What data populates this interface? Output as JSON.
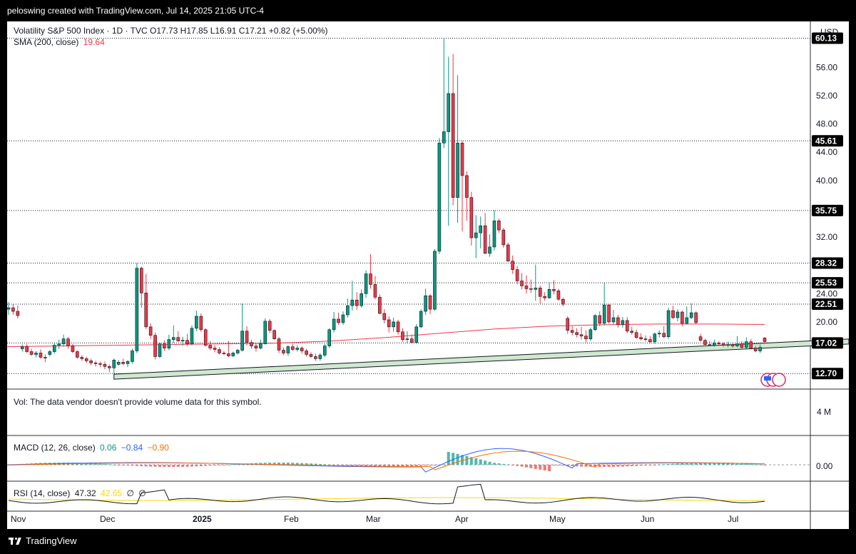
{
  "header": {
    "text": "peloswing created with TradingView.com, Jul 14, 2025 21:05 UTC-4"
  },
  "footer": {
    "brand": "TradingView"
  },
  "legend": {
    "symbol_line": "Volatility S&P 500 Index · 1D · TVC  O17.73  H17.85  L16.91  C17.21  +0.82 (+5.00%)",
    "sma_label": "SMA (200, close)",
    "sma_value": "19.64",
    "currency": "USD"
  },
  "volume": {
    "label": "Vol: The data vendor doesn't provide volume data for this symbol.",
    "axis_label": "4 M"
  },
  "macd": {
    "label": "MACD (12, 26, close)",
    "v1": "0.06",
    "v2": "−0.84",
    "v3": "−0.90",
    "zero_label": "0.00"
  },
  "rsi": {
    "label": "RSI (14, close)",
    "v1": "47.32",
    "v2": "42.65",
    "v3": "∅",
    "v4": "∅"
  },
  "colors": {
    "up": "#089981",
    "down": "#f23645",
    "sma": "#f23645",
    "macd": "#2962ff",
    "signal": "#ff6d00",
    "rsi_ma": "#f5d90a",
    "channel": "#cfe8cf"
  },
  "chart_data": {
    "type": "candlestick",
    "title": "Volatility S&P 500 Index · 1D · TVC",
    "ylim": [
      10.5,
      62.5
    ],
    "y_ticks": [
      "56.00",
      "52.00",
      "48.00",
      "44.00",
      "40.00",
      "32.00",
      "24.00",
      "20.00"
    ],
    "x_ticks": [
      "Nov",
      "Dec",
      "2025",
      "Feb",
      "Mar",
      "Apr",
      "May",
      "Jun",
      "Jul"
    ],
    "price_levels": [
      "60.13",
      "45.61",
      "35.75",
      "28.32",
      "25.53",
      "22.51",
      "17.02",
      "12.70"
    ],
    "support_line": {
      "start": [
        "Dec 18",
        11.9
      ],
      "end": [
        "Jul 14",
        16.3
      ]
    },
    "candles": [
      {
        "o": 21.8,
        "h": 22.8,
        "l": 21.0,
        "c": 22.0
      },
      {
        "o": 22.0,
        "h": 22.5,
        "l": 21.0,
        "c": 21.5
      },
      {
        "o": 21.5,
        "h": 22.3,
        "l": 20.5,
        "c": 20.9
      },
      {
        "o": 16.2,
        "h": 16.8,
        "l": 15.8,
        "c": 16.5
      },
      {
        "o": 16.5,
        "h": 16.9,
        "l": 15.6,
        "c": 15.8
      },
      {
        "o": 15.8,
        "h": 16.2,
        "l": 15.2,
        "c": 15.4
      },
      {
        "o": 15.4,
        "h": 15.9,
        "l": 15.0,
        "c": 15.6
      },
      {
        "o": 15.6,
        "h": 16.1,
        "l": 14.8,
        "c": 15.0
      },
      {
        "o": 15.0,
        "h": 15.4,
        "l": 14.3,
        "c": 14.9
      },
      {
        "o": 15.4,
        "h": 16.0,
        "l": 15.1,
        "c": 15.8
      },
      {
        "o": 15.8,
        "h": 17.0,
        "l": 15.5,
        "c": 16.7
      },
      {
        "o": 16.7,
        "h": 17.5,
        "l": 16.2,
        "c": 16.9
      },
      {
        "o": 16.9,
        "h": 18.2,
        "l": 16.5,
        "c": 17.6
      },
      {
        "o": 17.6,
        "h": 17.9,
        "l": 16.2,
        "c": 16.6
      },
      {
        "o": 16.6,
        "h": 16.9,
        "l": 15.6,
        "c": 15.8
      },
      {
        "o": 15.8,
        "h": 16.0,
        "l": 14.8,
        "c": 15.0
      },
      {
        "o": 15.0,
        "h": 15.3,
        "l": 14.5,
        "c": 14.8
      },
      {
        "o": 14.8,
        "h": 15.1,
        "l": 14.2,
        "c": 14.5
      },
      {
        "o": 14.5,
        "h": 14.8,
        "l": 13.9,
        "c": 14.2
      },
      {
        "o": 14.2,
        "h": 14.5,
        "l": 13.7,
        "c": 14.1
      },
      {
        "o": 14.1,
        "h": 14.4,
        "l": 13.6,
        "c": 14.0
      },
      {
        "o": 14.0,
        "h": 14.4,
        "l": 13.3,
        "c": 13.7
      },
      {
        "o": 13.7,
        "h": 14.0,
        "l": 12.9,
        "c": 13.5
      },
      {
        "o": 13.5,
        "h": 14.8,
        "l": 12.7,
        "c": 14.6
      },
      {
        "o": 14.0,
        "h": 14.6,
        "l": 13.8,
        "c": 14.3
      },
      {
        "o": 14.3,
        "h": 14.8,
        "l": 13.9,
        "c": 14.1
      },
      {
        "o": 14.1,
        "h": 14.6,
        "l": 13.6,
        "c": 14.4
      },
      {
        "o": 14.4,
        "h": 16.2,
        "l": 14.1,
        "c": 15.9
      },
      {
        "o": 15.9,
        "h": 28.3,
        "l": 15.6,
        "c": 27.6
      },
      {
        "o": 27.6,
        "h": 27.8,
        "l": 22.0,
        "c": 24.1
      },
      {
        "o": 24.1,
        "h": 26.8,
        "l": 19.0,
        "c": 19.3
      },
      {
        "o": 19.3,
        "h": 19.8,
        "l": 17.6,
        "c": 18.1
      },
      {
        "o": 18.1,
        "h": 18.5,
        "l": 14.7,
        "c": 15.1
      },
      {
        "o": 15.1,
        "h": 17.1,
        "l": 14.9,
        "c": 16.9
      },
      {
        "o": 16.9,
        "h": 17.4,
        "l": 15.9,
        "c": 16.3
      },
      {
        "o": 16.3,
        "h": 18.2,
        "l": 16.0,
        "c": 17.5
      },
      {
        "o": 17.5,
        "h": 19.5,
        "l": 17.0,
        "c": 17.8
      },
      {
        "o": 17.8,
        "h": 18.7,
        "l": 17.2,
        "c": 17.3
      },
      {
        "o": 17.3,
        "h": 17.9,
        "l": 16.6,
        "c": 17.4
      },
      {
        "o": 17.4,
        "h": 18.3,
        "l": 16.6,
        "c": 16.9
      },
      {
        "o": 16.9,
        "h": 19.5,
        "l": 16.7,
        "c": 19.1
      },
      {
        "o": 19.1,
        "h": 21.6,
        "l": 18.7,
        "c": 20.8
      },
      {
        "o": 20.8,
        "h": 21.2,
        "l": 18.6,
        "c": 18.9
      },
      {
        "o": 18.9,
        "h": 19.1,
        "l": 16.5,
        "c": 16.7
      },
      {
        "o": 16.7,
        "h": 17.3,
        "l": 16.0,
        "c": 16.3
      },
      {
        "o": 16.3,
        "h": 16.7,
        "l": 15.7,
        "c": 16.1
      },
      {
        "o": 16.1,
        "h": 16.4,
        "l": 15.4,
        "c": 15.6
      },
      {
        "o": 15.6,
        "h": 15.9,
        "l": 15.3,
        "c": 15.5
      },
      {
        "o": 15.5,
        "h": 17.3,
        "l": 15.0,
        "c": 15.2
      },
      {
        "o": 15.2,
        "h": 15.8,
        "l": 15.0,
        "c": 15.6
      },
      {
        "o": 15.6,
        "h": 16.2,
        "l": 15.4,
        "c": 16.0
      },
      {
        "o": 16.0,
        "h": 22.6,
        "l": 15.8,
        "c": 18.7
      },
      {
        "o": 18.7,
        "h": 19.4,
        "l": 16.7,
        "c": 17.1
      },
      {
        "o": 17.1,
        "h": 17.5,
        "l": 16.2,
        "c": 16.6
      },
      {
        "o": 16.6,
        "h": 16.9,
        "l": 15.8,
        "c": 16.3
      },
      {
        "o": 16.3,
        "h": 17.5,
        "l": 16.1,
        "c": 16.9
      },
      {
        "o": 16.9,
        "h": 20.5,
        "l": 16.8,
        "c": 20.1
      },
      {
        "o": 20.1,
        "h": 20.4,
        "l": 18.4,
        "c": 18.8
      },
      {
        "o": 18.8,
        "h": 18.9,
        "l": 17.5,
        "c": 17.6
      },
      {
        "o": 17.6,
        "h": 17.9,
        "l": 15.6,
        "c": 16.0
      },
      {
        "o": 16.0,
        "h": 16.4,
        "l": 15.3,
        "c": 15.6
      },
      {
        "o": 15.6,
        "h": 16.7,
        "l": 15.2,
        "c": 16.5
      },
      {
        "o": 16.5,
        "h": 16.9,
        "l": 15.9,
        "c": 16.1
      },
      {
        "o": 16.1,
        "h": 16.7,
        "l": 15.8,
        "c": 16.3
      },
      {
        "o": 16.3,
        "h": 16.6,
        "l": 15.5,
        "c": 15.9
      },
      {
        "o": 15.9,
        "h": 16.2,
        "l": 15.1,
        "c": 15.4
      },
      {
        "o": 15.4,
        "h": 15.7,
        "l": 14.9,
        "c": 15.1
      },
      {
        "o": 15.1,
        "h": 15.5,
        "l": 14.5,
        "c": 14.8
      },
      {
        "o": 14.8,
        "h": 15.6,
        "l": 14.5,
        "c": 15.3
      },
      {
        "o": 15.3,
        "h": 16.9,
        "l": 15.0,
        "c": 16.6
      },
      {
        "o": 16.6,
        "h": 19.1,
        "l": 16.3,
        "c": 18.9
      },
      {
        "o": 18.9,
        "h": 21.4,
        "l": 18.5,
        "c": 20.4
      },
      {
        "o": 20.4,
        "h": 21.3,
        "l": 19.6,
        "c": 19.9
      },
      {
        "o": 19.9,
        "h": 21.5,
        "l": 19.6,
        "c": 21.0
      },
      {
        "o": 21.0,
        "h": 23.3,
        "l": 20.6,
        "c": 22.3
      },
      {
        "o": 22.3,
        "h": 25.8,
        "l": 21.6,
        "c": 23.1
      },
      {
        "o": 23.1,
        "h": 24.2,
        "l": 21.7,
        "c": 22.3
      },
      {
        "o": 22.3,
        "h": 24.6,
        "l": 22.0,
        "c": 24.0
      },
      {
        "o": 24.0,
        "h": 27.3,
        "l": 23.4,
        "c": 26.8
      },
      {
        "o": 26.8,
        "h": 29.6,
        "l": 24.7,
        "c": 25.3
      },
      {
        "o": 25.3,
        "h": 26.5,
        "l": 23.2,
        "c": 23.5
      },
      {
        "o": 23.5,
        "h": 23.9,
        "l": 21.1,
        "c": 21.2
      },
      {
        "o": 21.2,
        "h": 21.8,
        "l": 19.8,
        "c": 20.3
      },
      {
        "o": 20.3,
        "h": 20.8,
        "l": 18.5,
        "c": 19.3
      },
      {
        "o": 19.3,
        "h": 20.6,
        "l": 18.6,
        "c": 20.0
      },
      {
        "o": 20.0,
        "h": 20.3,
        "l": 18.2,
        "c": 18.6
      },
      {
        "o": 18.6,
        "h": 19.1,
        "l": 17.2,
        "c": 17.5
      },
      {
        "o": 17.5,
        "h": 18.7,
        "l": 17.0,
        "c": 17.6
      },
      {
        "o": 17.6,
        "h": 18.2,
        "l": 16.9,
        "c": 17.1
      },
      {
        "o": 17.1,
        "h": 19.7,
        "l": 16.9,
        "c": 19.3
      },
      {
        "o": 19.3,
        "h": 21.8,
        "l": 19.1,
        "c": 21.5
      },
      {
        "o": 21.5,
        "h": 24.7,
        "l": 21.0,
        "c": 23.7
      },
      {
        "o": 23.7,
        "h": 23.9,
        "l": 21.1,
        "c": 21.8
      },
      {
        "o": 21.8,
        "h": 30.3,
        "l": 21.6,
        "c": 30.0
      },
      {
        "o": 30.0,
        "h": 46.0,
        "l": 29.6,
        "c": 45.3
      },
      {
        "o": 45.3,
        "h": 60.1,
        "l": 44.6,
        "c": 46.9
      },
      {
        "o": 46.9,
        "h": 57.5,
        "l": 33.6,
        "c": 52.3
      },
      {
        "o": 52.3,
        "h": 57.9,
        "l": 36.5,
        "c": 37.6
      },
      {
        "o": 37.6,
        "h": 54.9,
        "l": 34.0,
        "c": 45.3
      },
      {
        "o": 45.3,
        "h": 45.6,
        "l": 32.8,
        "c": 40.7
      },
      {
        "o": 40.7,
        "h": 41.3,
        "l": 34.3,
        "c": 37.6
      },
      {
        "o": 37.6,
        "h": 38.4,
        "l": 30.8,
        "c": 31.9
      },
      {
        "o": 31.9,
        "h": 35.1,
        "l": 29.0,
        "c": 32.6
      },
      {
        "o": 32.6,
        "h": 34.9,
        "l": 30.4,
        "c": 33.6
      },
      {
        "o": 33.6,
        "h": 35.4,
        "l": 29.6,
        "c": 29.7
      },
      {
        "o": 29.7,
        "h": 32.4,
        "l": 29.2,
        "c": 30.6
      },
      {
        "o": 30.6,
        "h": 35.8,
        "l": 30.1,
        "c": 34.3
      },
      {
        "o": 34.3,
        "h": 34.6,
        "l": 32.6,
        "c": 33.0
      },
      {
        "o": 33.0,
        "h": 33.3,
        "l": 30.5,
        "c": 30.9
      },
      {
        "o": 30.9,
        "h": 31.2,
        "l": 28.5,
        "c": 28.6
      },
      {
        "o": 28.6,
        "h": 29.4,
        "l": 26.8,
        "c": 27.4
      },
      {
        "o": 27.4,
        "h": 27.9,
        "l": 25.3,
        "c": 25.8
      },
      {
        "o": 25.8,
        "h": 26.9,
        "l": 24.6,
        "c": 25.1
      },
      {
        "o": 25.1,
        "h": 26.6,
        "l": 24.0,
        "c": 24.7
      },
      {
        "o": 24.7,
        "h": 26.0,
        "l": 24.1,
        "c": 24.6
      },
      {
        "o": 24.6,
        "h": 28.1,
        "l": 23.0,
        "c": 24.8
      },
      {
        "o": 24.8,
        "h": 25.1,
        "l": 22.6,
        "c": 23.6
      },
      {
        "o": 23.6,
        "h": 24.2,
        "l": 23.0,
        "c": 23.4
      },
      {
        "o": 23.4,
        "h": 25.6,
        "l": 23.3,
        "c": 24.6
      },
      {
        "o": 24.6,
        "h": 25.9,
        "l": 23.9,
        "c": 24.4
      },
      {
        "o": 24.4,
        "h": 24.7,
        "l": 23.0,
        "c": 23.2
      },
      {
        "o": 23.2,
        "h": 23.4,
        "l": 22.2,
        "c": 22.5
      },
      {
        "o": 20.5,
        "h": 20.8,
        "l": 18.3,
        "c": 18.8
      },
      {
        "o": 18.8,
        "h": 19.4,
        "l": 18.1,
        "c": 18.5
      },
      {
        "o": 18.5,
        "h": 19.1,
        "l": 17.8,
        "c": 18.2
      },
      {
        "o": 18.2,
        "h": 19.3,
        "l": 17.5,
        "c": 18.0
      },
      {
        "o": 18.0,
        "h": 18.8,
        "l": 17.1,
        "c": 17.6
      },
      {
        "o": 17.6,
        "h": 19.2,
        "l": 17.3,
        "c": 18.9
      },
      {
        "o": 18.9,
        "h": 21.1,
        "l": 18.7,
        "c": 20.9
      },
      {
        "o": 20.9,
        "h": 21.5,
        "l": 19.4,
        "c": 19.8
      },
      {
        "o": 19.8,
        "h": 25.5,
        "l": 19.5,
        "c": 22.4
      },
      {
        "o": 22.4,
        "h": 22.6,
        "l": 19.8,
        "c": 20.0
      },
      {
        "o": 20.0,
        "h": 21.7,
        "l": 19.6,
        "c": 20.6
      },
      {
        "o": 20.6,
        "h": 21.0,
        "l": 19.2,
        "c": 19.6
      },
      {
        "o": 19.6,
        "h": 20.7,
        "l": 19.2,
        "c": 20.2
      },
      {
        "o": 20.2,
        "h": 20.7,
        "l": 18.4,
        "c": 18.7
      },
      {
        "o": 18.7,
        "h": 19.3,
        "l": 18.2,
        "c": 18.5
      },
      {
        "o": 18.5,
        "h": 18.9,
        "l": 17.6,
        "c": 17.8
      },
      {
        "o": 17.8,
        "h": 18.4,
        "l": 17.4,
        "c": 17.6
      },
      {
        "o": 17.6,
        "h": 18.1,
        "l": 17.2,
        "c": 17.5
      },
      {
        "o": 17.5,
        "h": 18.0,
        "l": 17.0,
        "c": 17.2
      },
      {
        "o": 17.2,
        "h": 18.5,
        "l": 16.9,
        "c": 18.3
      },
      {
        "o": 18.3,
        "h": 18.8,
        "l": 17.8,
        "c": 18.4
      },
      {
        "o": 18.4,
        "h": 19.4,
        "l": 17.7,
        "c": 17.9
      },
      {
        "o": 17.9,
        "h": 22.0,
        "l": 17.6,
        "c": 21.6
      },
      {
        "o": 21.6,
        "h": 22.3,
        "l": 20.4,
        "c": 20.6
      },
      {
        "o": 20.6,
        "h": 21.8,
        "l": 20.1,
        "c": 21.4
      },
      {
        "o": 21.4,
        "h": 21.6,
        "l": 19.4,
        "c": 19.8
      },
      {
        "o": 19.8,
        "h": 22.2,
        "l": 19.6,
        "c": 20.6
      },
      {
        "o": 20.6,
        "h": 22.6,
        "l": 20.4,
        "c": 21.3
      },
      {
        "o": 21.3,
        "h": 21.5,
        "l": 19.7,
        "c": 19.9
      },
      {
        "o": 17.9,
        "h": 18.3,
        "l": 17.2,
        "c": 17.4
      },
      {
        "o": 17.4,
        "h": 17.6,
        "l": 16.6,
        "c": 16.8
      },
      {
        "o": 16.8,
        "h": 17.3,
        "l": 16.6,
        "c": 16.7
      },
      {
        "o": 16.7,
        "h": 17.5,
        "l": 16.5,
        "c": 17.0
      },
      {
        "o": 17.0,
        "h": 17.3,
        "l": 16.6,
        "c": 16.9
      },
      {
        "o": 16.9,
        "h": 17.1,
        "l": 16.5,
        "c": 16.7
      },
      {
        "o": 16.7,
        "h": 17.2,
        "l": 16.4,
        "c": 16.8
      },
      {
        "o": 16.8,
        "h": 17.0,
        "l": 16.3,
        "c": 16.6
      },
      {
        "o": 16.6,
        "h": 18.0,
        "l": 16.4,
        "c": 16.9
      },
      {
        "o": 16.9,
        "h": 17.3,
        "l": 16.2,
        "c": 16.4
      },
      {
        "o": 16.4,
        "h": 17.8,
        "l": 16.2,
        "c": 17.2
      },
      {
        "o": 17.2,
        "h": 17.6,
        "l": 16.1,
        "c": 16.3
      },
      {
        "o": 16.3,
        "h": 16.6,
        "l": 15.7,
        "c": 15.9
      },
      {
        "o": 15.9,
        "h": 16.8,
        "l": 15.6,
        "c": 16.4
      },
      {
        "o": 17.73,
        "h": 17.85,
        "l": 16.91,
        "c": 17.21
      }
    ],
    "sma200": [
      16.5,
      16.6,
      16.7,
      16.8,
      16.9,
      17.0,
      17.3,
      17.8,
      18.4,
      19.0,
      19.4,
      19.6,
      19.7,
      19.7,
      19.64
    ]
  }
}
